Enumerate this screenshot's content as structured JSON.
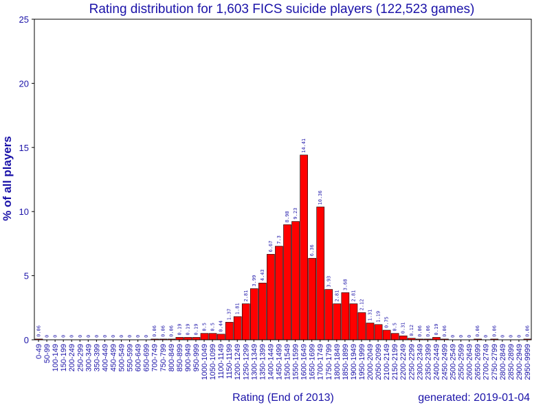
{
  "chart_data": {
    "type": "bar",
    "title": "Rating distribution for 1,603 FICS suicide players (122,523 games)",
    "xlabel": "Rating (End of 2013)",
    "ylabel": "% of all players",
    "footer": "generated: 2019-01-04",
    "ylim": [
      0,
      25
    ],
    "yticks": [
      0,
      5,
      10,
      15,
      20,
      25
    ],
    "grid": false,
    "bar_color": "#ff0000",
    "categories": [
      "0-49",
      "50-99",
      "100-149",
      "150-199",
      "200-249",
      "250-299",
      "300-349",
      "350-399",
      "400-449",
      "450-499",
      "500-549",
      "550-599",
      "600-649",
      "650-699",
      "700-749",
      "750-799",
      "800-849",
      "850-899",
      "900-949",
      "950-999",
      "1000-1049",
      "1050-1099",
      "1100-1149",
      "1150-1199",
      "1200-1249",
      "1250-1299",
      "1300-1349",
      "1350-1399",
      "1400-1449",
      "1450-1499",
      "1500-1549",
      "1550-1599",
      "1600-1649",
      "1650-1699",
      "1700-1749",
      "1750-1799",
      "1800-1849",
      "1850-1899",
      "1900-1949",
      "1950-1999",
      "2000-2049",
      "2050-2099",
      "2100-2149",
      "2150-2199",
      "2200-2249",
      "2250-2299",
      "2300-2349",
      "2350-2399",
      "2400-2449",
      "2450-2499",
      "2500-2549",
      "2550-2599",
      "2600-2649",
      "2650-2699",
      "2700-2749",
      "2750-2799",
      "2800-2849",
      "2850-2899",
      "2900-2949",
      "2950-9999"
    ],
    "values": [
      0.06,
      0,
      0,
      0,
      0,
      0,
      0,
      0,
      0,
      0,
      0,
      0,
      0,
      0,
      0.06,
      0.06,
      0.06,
      0.19,
      0.19,
      0.19,
      0.5,
      0.5,
      0.44,
      1.37,
      1.81,
      2.81,
      3.99,
      4.43,
      6.67,
      7.3,
      8.98,
      9.23,
      14.41,
      6.36,
      10.36,
      3.93,
      2.81,
      3.68,
      2.81,
      2.12,
      1.31,
      1.19,
      0.75,
      0.5,
      0.31,
      0.12,
      0.06,
      0.06,
      0.19,
      0.06,
      0,
      0,
      0,
      0.06,
      0,
      0.06,
      0,
      0,
      0,
      0.06
    ],
    "labels": [
      "0.06",
      "0",
      "0",
      "0",
      "0",
      "0",
      "0",
      "0",
      "0",
      "0",
      "0",
      "0",
      "0",
      "0",
      "0.06",
      "0.06",
      "0.06",
      "0.19",
      "0.19",
      "0.19",
      "0.5",
      "0.5",
      "0.44",
      "1.37",
      "1.81",
      "2.81",
      "3.99",
      "4.43",
      "6.67",
      "7.3",
      "8.98",
      "9.23",
      "14.41",
      "6.36",
      "10.36",
      "3.93",
      "2.81",
      "3.68",
      "2.81",
      "2.12",
      "1.31",
      "1.19",
      "0.75",
      "0.5",
      "0.31",
      "0.12",
      "0.06",
      "0.06",
      "0.19",
      "0.06",
      "0",
      "0",
      "0",
      "0.06",
      "0",
      "0.06",
      "0",
      "0",
      "0",
      "0.06"
    ]
  }
}
